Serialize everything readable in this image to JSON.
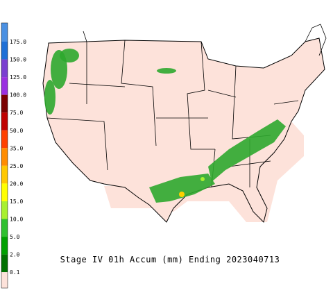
{
  "legend": {
    "labels": [
      "175.0",
      "150.0",
      "125.0",
      "100.0",
      "75.0",
      "50.0",
      "35.0",
      "25.0",
      "20.0",
      "15.0",
      "10.0",
      "5.0",
      "2.0",
      "0.1"
    ],
    "colors": [
      "#4a90e2",
      "#1e6fd6",
      "#7a3fd0",
      "#9a30e0",
      "#7a0000",
      "#c00000",
      "#ff4000",
      "#ff8c00",
      "#ffc800",
      "#ffff00",
      "#a8f030",
      "#30c030",
      "#00a000",
      "#007000",
      "#fde2da"
    ]
  },
  "caption": "Stage IV 01h Accum (mm) Ending 2023040713"
}
